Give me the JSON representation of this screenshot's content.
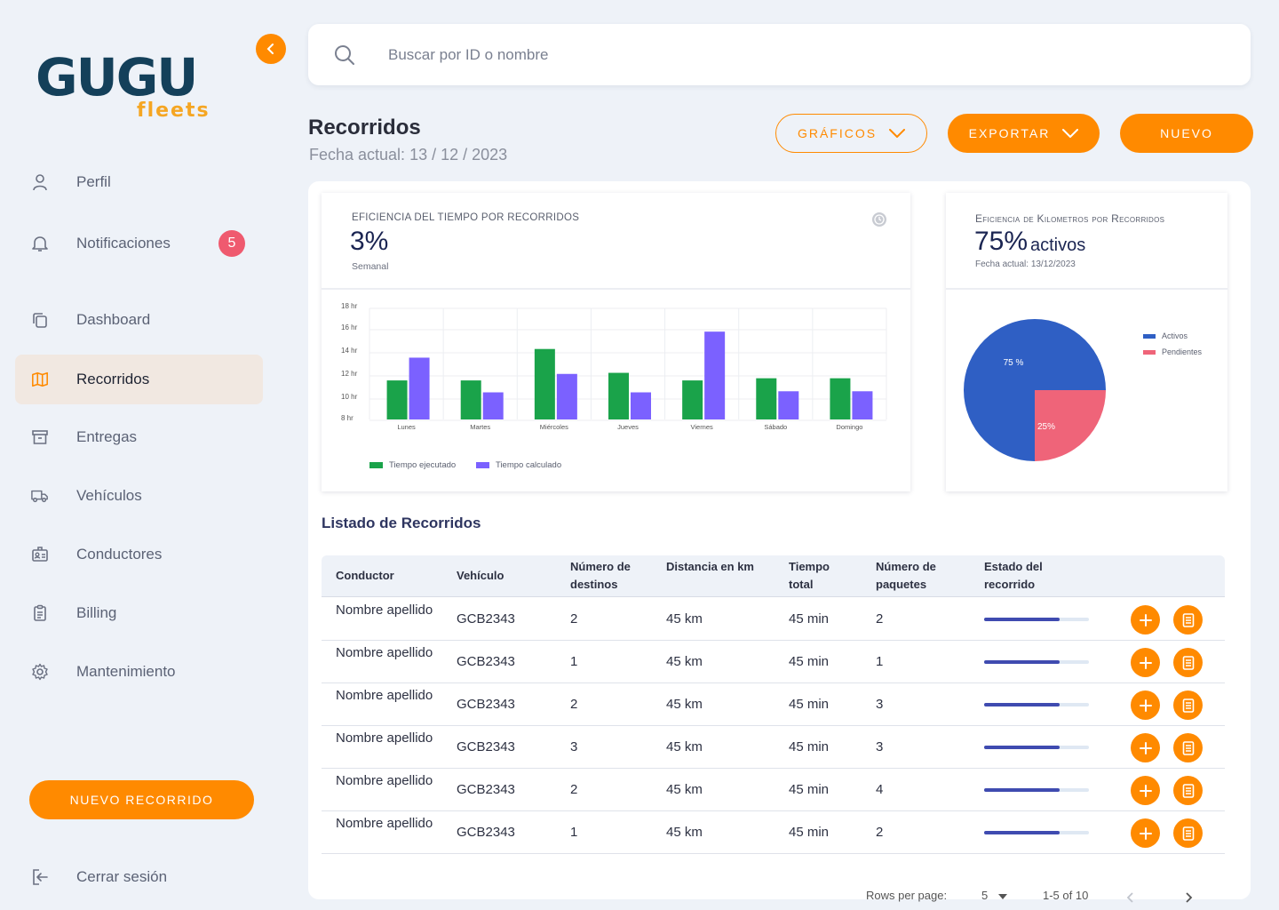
{
  "brand": {
    "logo_main": "GUGU",
    "logo_sub": "fleets"
  },
  "sidebar": {
    "items": [
      {
        "label": "Perfil",
        "icon": "user-icon"
      },
      {
        "label": "Notificaciones",
        "icon": "bell-icon",
        "badge": "5"
      },
      {
        "label": "Dashboard",
        "icon": "copy-icon"
      },
      {
        "label": "Recorridos",
        "icon": "map-icon",
        "active": true
      },
      {
        "label": "Entregas",
        "icon": "archive-icon"
      },
      {
        "label": "Vehículos",
        "icon": "truck-icon"
      },
      {
        "label": "Conductores",
        "icon": "id-card-icon"
      },
      {
        "label": "Billing",
        "icon": "clipboard-icon"
      },
      {
        "label": "Mantenimiento",
        "icon": "gear-icon"
      }
    ],
    "new_route_label": "NUEVO RECORRIDO",
    "logout_label": "Cerrar sesión"
  },
  "search": {
    "placeholder": "Buscar por ID o nombre"
  },
  "header": {
    "title": "Recorridos",
    "date": "Fecha actual: 13 / 12 / 2023",
    "graphs_label": "GRÁFICOS",
    "export_label": "EXPORTAR",
    "new_label": "NUEVO"
  },
  "accent_color": "#ff8a00",
  "time_card": {
    "title": "EFICIENCIA DEL TIEMPO POR RECORRIDOS",
    "value": "3%",
    "period": "Semanal"
  },
  "km_card": {
    "title": "Eficiencia de Kilometros por Recorridos",
    "value": "75%",
    "value_suffix": "activos",
    "date": "Fecha actual: 13/12/2023"
  },
  "chart_data": [
    {
      "type": "bar",
      "categories": [
        "Lunes",
        "Martes",
        "Miércoles",
        "Jueves",
        "Viernes",
        "Sábado",
        "Domingo"
      ],
      "y_ticks": [
        "18 hr",
        "16 hr",
        "14 hr",
        "12 hr",
        "10 hr",
        "8 hr"
      ],
      "ylim": [
        8,
        18
      ],
      "series": [
        {
          "name": "Tiempo ejecutado",
          "color": "#1aa34a",
          "values": [
            11.6,
            11.6,
            14.5,
            12.3,
            11.6,
            11.8,
            11.8
          ]
        },
        {
          "name": "Tiempo calculado",
          "color": "#7b61ff",
          "values": [
            13.7,
            10.5,
            12.2,
            10.5,
            16.1,
            10.6,
            10.6
          ]
        }
      ],
      "legend_position": "bottom-left",
      "grid": true
    },
    {
      "type": "pie",
      "slices": [
        {
          "name": "Activos",
          "value": 75,
          "label": "75 %",
          "color": "#2f5fc4"
        },
        {
          "name": "Pendientes",
          "value": 25,
          "label": "25%",
          "color": "#ef6479"
        }
      ],
      "legend_position": "right"
    }
  ],
  "table": {
    "title": "Listado de Recorridos",
    "headers": [
      "Conductor",
      "Vehículo",
      "Número de destinos",
      "Distancia en km",
      "Tiempo total",
      "Número de paquetes",
      "Estado del recorrido"
    ],
    "rows": [
      {
        "driver": "Nombre apellido",
        "vehicle": "GCB2343",
        "destinations": "2",
        "distance": "45 km",
        "time": "45 min",
        "packages": "2",
        "progress": 0.72
      },
      {
        "driver": "Nombre apellido",
        "vehicle": "GCB2343",
        "destinations": "1",
        "distance": "45 km",
        "time": "45 min",
        "packages": "1",
        "progress": 0.72
      },
      {
        "driver": "Nombre apellido",
        "vehicle": "GCB2343",
        "destinations": "2",
        "distance": "45 km",
        "time": "45 min",
        "packages": "3",
        "progress": 0.72
      },
      {
        "driver": "Nombre apellido",
        "vehicle": "GCB2343",
        "destinations": "3",
        "distance": "45 km",
        "time": "45 min",
        "packages": "3",
        "progress": 0.72
      },
      {
        "driver": "Nombre apellido",
        "vehicle": "GCB2343",
        "destinations": "2",
        "distance": "45 km",
        "time": "45 min",
        "packages": "4",
        "progress": 0.72
      },
      {
        "driver": "Nombre apellido",
        "vehicle": "GCB2343",
        "destinations": "1",
        "distance": "45 km",
        "time": "45 min",
        "packages": "2",
        "progress": 0.72
      }
    ]
  },
  "pagination": {
    "rows_label": "Rows per page:",
    "rows_value": "5",
    "range": "1-5 of 10"
  }
}
